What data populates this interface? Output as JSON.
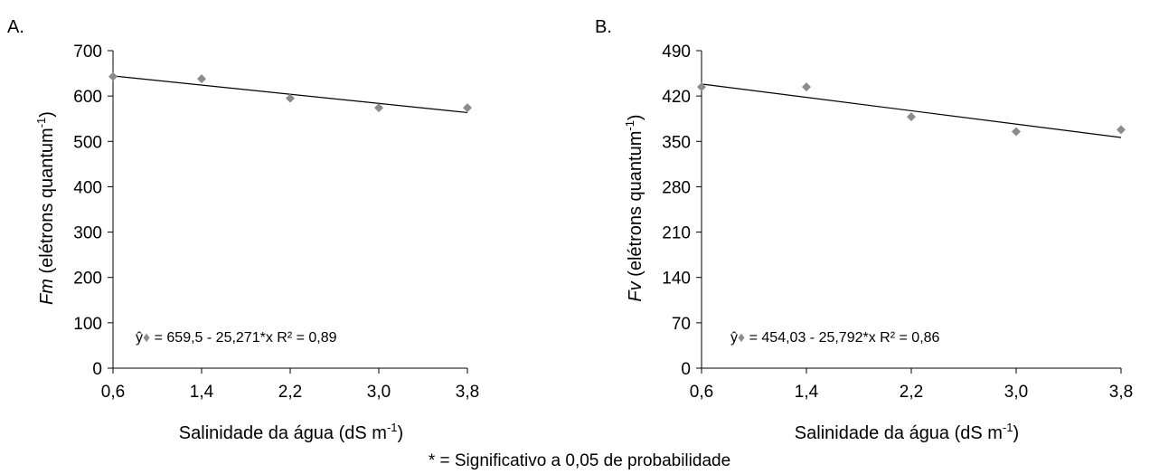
{
  "footnote": "* = Significativo a 0,05 de probabilidade",
  "colors": {
    "marker": "#8c8c8c",
    "axis": "#000000",
    "trend": "#000000"
  },
  "chart_data": [
    {
      "type": "scatter",
      "panel_label": "A.",
      "ylabel_italic": "Fm",
      "ylabel_rest": " (elétrons quantum",
      "ylabel_sup": "-1",
      "ylabel_close": ")",
      "xlabel_main": "Salinidade da água (dS m",
      "xlabel_sup": "-1",
      "xlabel_close": ")",
      "x": [
        0.6,
        1.4,
        2.2,
        3.0,
        3.8
      ],
      "y": [
        643,
        638,
        595,
        574,
        574
      ],
      "xticks": [
        "0,6",
        "1,4",
        "2,2",
        "3,0",
        "3,8"
      ],
      "yticks": [
        "0",
        "100",
        "200",
        "300",
        "400",
        "500",
        "600",
        "700"
      ],
      "xlim": [
        0.6,
        3.8
      ],
      "ylim": [
        0,
        700
      ],
      "trend": {
        "intercept": 659.5,
        "slope": -25.271
      },
      "equation_prefix": "ŷ",
      "equation_text": " = 659,5 - 25,271*x R² = 0,89"
    },
    {
      "type": "scatter",
      "panel_label": "B.",
      "ylabel_italic": "Fv",
      "ylabel_rest": " (elétrons quantum",
      "ylabel_sup": "-1",
      "ylabel_close": ")",
      "xlabel_main": "Salinidade da água (dS m",
      "xlabel_sup": "-1",
      "xlabel_close": ")",
      "x": [
        0.6,
        1.4,
        2.2,
        3.0,
        3.8
      ],
      "y": [
        434,
        434,
        388,
        365,
        368
      ],
      "xticks": [
        "0,6",
        "1,4",
        "2,2",
        "3,0",
        "3,8"
      ],
      "yticks": [
        "0",
        "70",
        "140",
        "210",
        "280",
        "350",
        "420",
        "490"
      ],
      "xlim": [
        0.6,
        3.8
      ],
      "ylim": [
        0,
        490
      ],
      "trend": {
        "intercept": 454.03,
        "slope": -25.792
      },
      "equation_prefix": "ŷ",
      "equation_text": " = 454,03 - 25,792*x R² = 0,86"
    }
  ]
}
